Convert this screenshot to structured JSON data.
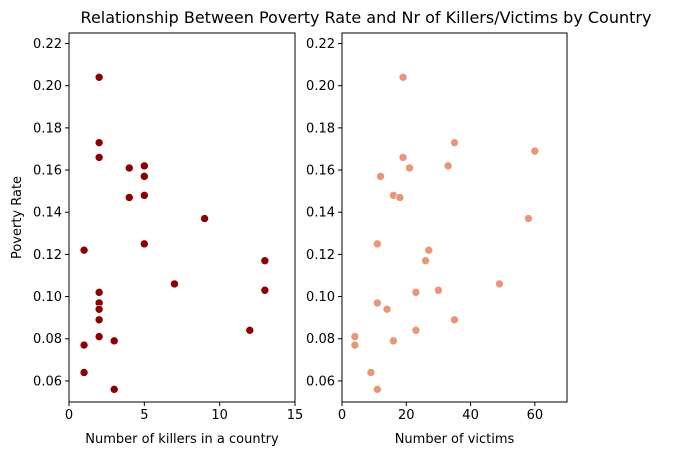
{
  "chart_data": {
    "title": "Relationship Between Poverty Rate and Nr of Killers/Victims by Country",
    "panels": [
      {
        "type": "scatter",
        "xlabel": "Number of killers in a country",
        "ylabel": "Poverty Rate",
        "xlim": [
          0,
          15
        ],
        "ylim": [
          0.05,
          0.225
        ],
        "xticks": [
          "0",
          "5",
          "10",
          "15"
        ],
        "yticks": [
          "0.06",
          "0.08",
          "0.10",
          "0.12",
          "0.14",
          "0.16",
          "0.18",
          "0.20",
          "0.22"
        ],
        "color": "#8b0000",
        "points": [
          {
            "x": 2,
            "y": 0.204
          },
          {
            "x": 2,
            "y": 0.173
          },
          {
            "x": 2,
            "y": 0.166
          },
          {
            "x": 4,
            "y": 0.161
          },
          {
            "x": 5,
            "y": 0.162
          },
          {
            "x": 5,
            "y": 0.157
          },
          {
            "x": 5,
            "y": 0.148
          },
          {
            "x": 4,
            "y": 0.147
          },
          {
            "x": 9,
            "y": 0.137
          },
          {
            "x": 5,
            "y": 0.125
          },
          {
            "x": 1,
            "y": 0.122
          },
          {
            "x": 13,
            "y": 0.117
          },
          {
            "x": 7,
            "y": 0.106
          },
          {
            "x": 13,
            "y": 0.103
          },
          {
            "x": 2,
            "y": 0.102
          },
          {
            "x": 2,
            "y": 0.097
          },
          {
            "x": 2,
            "y": 0.094
          },
          {
            "x": 2,
            "y": 0.089
          },
          {
            "x": 12,
            "y": 0.084
          },
          {
            "x": 2,
            "y": 0.081
          },
          {
            "x": 3,
            "y": 0.079
          },
          {
            "x": 1,
            "y": 0.077
          },
          {
            "x": 1,
            "y": 0.064
          },
          {
            "x": 3,
            "y": 0.056
          }
        ]
      },
      {
        "type": "scatter",
        "xlabel": "Number of victims",
        "ylabel": "",
        "xlim": [
          0,
          70
        ],
        "ylim": [
          0.05,
          0.225
        ],
        "xticks": [
          "0",
          "20",
          "40",
          "60"
        ],
        "yticks": [
          "0.06",
          "0.08",
          "0.10",
          "0.12",
          "0.14",
          "0.16",
          "0.18",
          "0.20",
          "0.22"
        ],
        "color": "#e9967a",
        "points": [
          {
            "x": 19,
            "y": 0.204
          },
          {
            "x": 35,
            "y": 0.173
          },
          {
            "x": 60,
            "y": 0.169
          },
          {
            "x": 19,
            "y": 0.166
          },
          {
            "x": 33,
            "y": 0.162
          },
          {
            "x": 21,
            "y": 0.161
          },
          {
            "x": 12,
            "y": 0.157
          },
          {
            "x": 16,
            "y": 0.148
          },
          {
            "x": 18,
            "y": 0.147
          },
          {
            "x": 58,
            "y": 0.137
          },
          {
            "x": 11,
            "y": 0.125
          },
          {
            "x": 27,
            "y": 0.122
          },
          {
            "x": 26,
            "y": 0.117
          },
          {
            "x": 49,
            "y": 0.106
          },
          {
            "x": 30,
            "y": 0.103
          },
          {
            "x": 23,
            "y": 0.102
          },
          {
            "x": 11,
            "y": 0.097
          },
          {
            "x": 14,
            "y": 0.094
          },
          {
            "x": 35,
            "y": 0.089
          },
          {
            "x": 23,
            "y": 0.084
          },
          {
            "x": 4,
            "y": 0.081
          },
          {
            "x": 16,
            "y": 0.079
          },
          {
            "x": 4,
            "y": 0.077
          },
          {
            "x": 9,
            "y": 0.064
          },
          {
            "x": 11,
            "y": 0.056
          }
        ]
      }
    ]
  }
}
